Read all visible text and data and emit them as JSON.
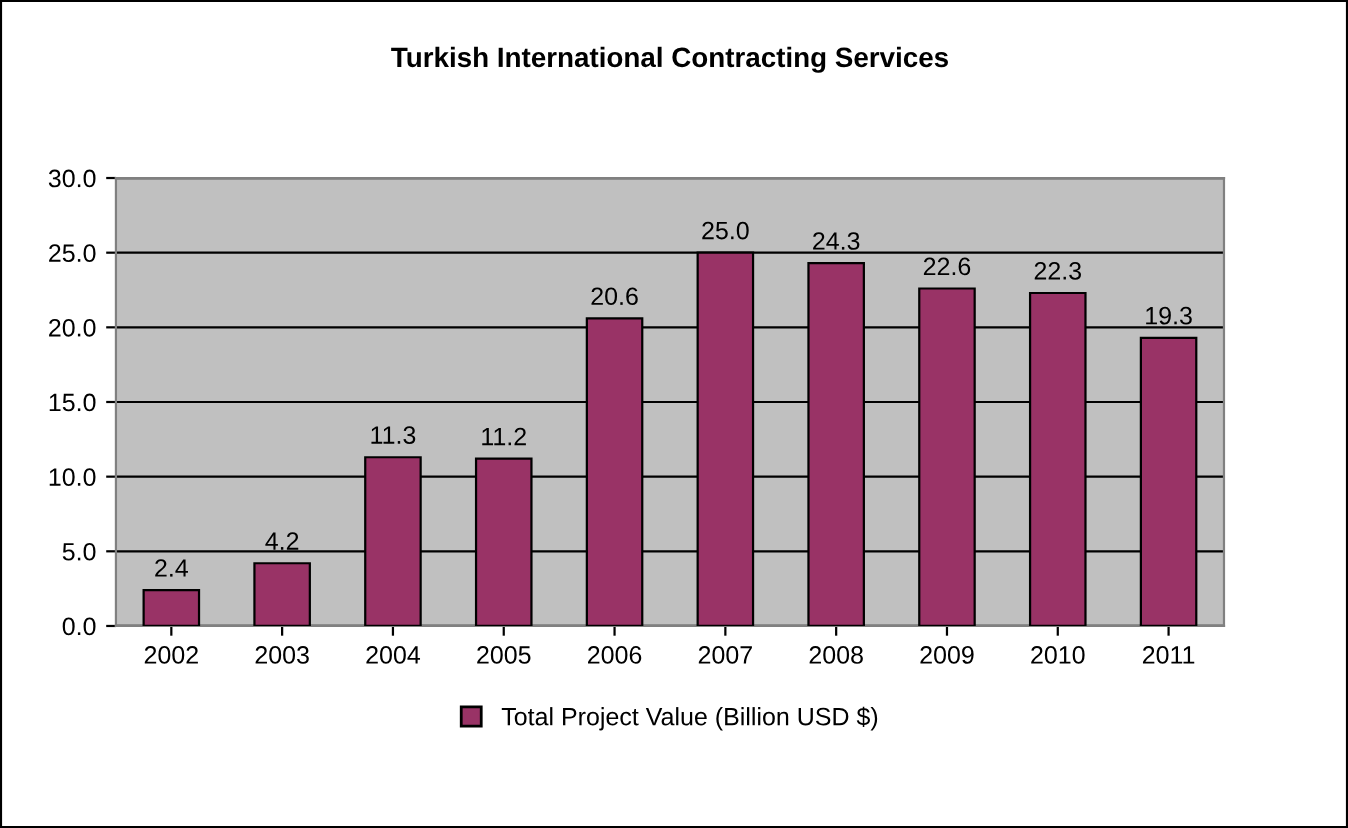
{
  "chart_data": {
    "type": "bar",
    "title": "Turkish International Contracting Services",
    "categories": [
      "2002",
      "2003",
      "2004",
      "2005",
      "2006",
      "2007",
      "2008",
      "2009",
      "2010",
      "2011"
    ],
    "series": [
      {
        "name": "Total Project Value (Billion USD $)",
        "color": "#993366",
        "values": [
          2.4,
          4.2,
          11.3,
          11.2,
          20.6,
          25.0,
          24.3,
          22.6,
          22.3,
          19.3
        ],
        "value_labels": [
          "2.4",
          "4.2",
          "11.3",
          "11.2",
          "20.6",
          "25.0",
          "24.3",
          "22.6",
          "22.3",
          "19.3"
        ]
      }
    ],
    "ylim": [
      0,
      30
    ],
    "yticks": [
      {
        "value": 0,
        "label": "0.0"
      },
      {
        "value": 5,
        "label": "5.0"
      },
      {
        "value": 10,
        "label": "10.0"
      },
      {
        "value": 15,
        "label": "15.0"
      },
      {
        "value": 20,
        "label": "20.0"
      },
      {
        "value": 25,
        "label": "25.0"
      },
      {
        "value": 30,
        "label": "30.0"
      }
    ],
    "grid": "y",
    "legend": "bottom"
  }
}
